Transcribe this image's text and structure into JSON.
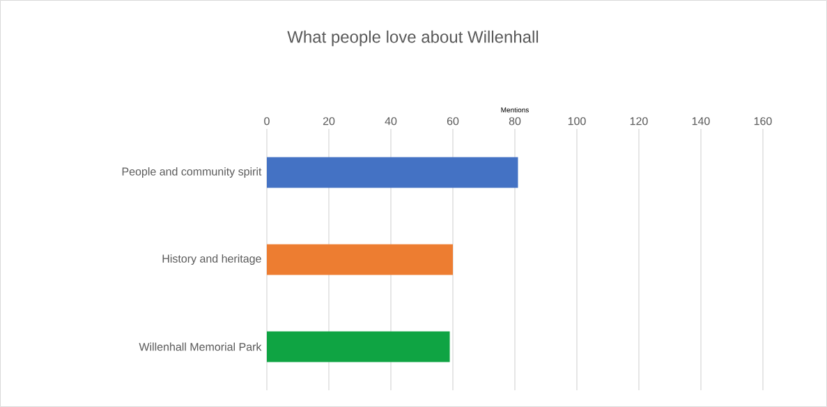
{
  "chart_data": {
    "type": "bar",
    "orientation": "horizontal",
    "title": "What people love about Willenhall",
    "xlabel": "Mentions",
    "categories": [
      "People and community spirit",
      "History and heritage",
      "Willenhall Memorial Park"
    ],
    "values": [
      81,
      60,
      59
    ],
    "colors": [
      "#4472c4",
      "#ed7d31",
      "#0fa443"
    ],
    "xlim": [
      0,
      160
    ],
    "xticks": [
      0,
      20,
      40,
      60,
      80,
      100,
      120,
      140,
      160
    ],
    "grid": "x"
  }
}
